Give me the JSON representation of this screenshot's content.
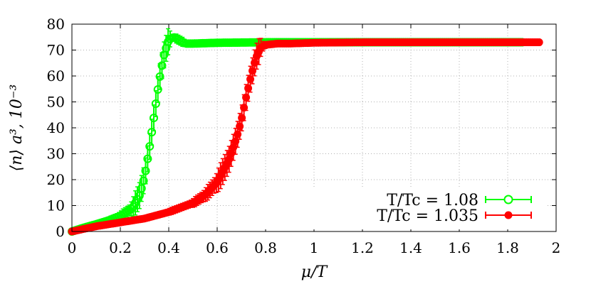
{
  "chart_data": {
    "type": "scatter",
    "xlabel": "μ/T",
    "ylabel": "⟨n⟩ a³, 10⁻³",
    "xlim": [
      0,
      2
    ],
    "ylim": [
      0,
      80
    ],
    "x_ticks": [
      "0",
      "0.2",
      "0.4",
      "0.6",
      "0.8",
      "1",
      "1.2",
      "1.4",
      "1.6",
      "1.8",
      "2"
    ],
    "y_ticks": [
      "0",
      "10",
      "20",
      "30",
      "40",
      "50",
      "60",
      "70",
      "80"
    ],
    "grid": true,
    "legend_position": "bottom-right",
    "series": [
      {
        "name": "T/Tc = 1.08",
        "color": "#00ff00",
        "marker": "open-circle",
        "error_bars": true,
        "x": [
          0,
          0.05,
          0.1,
          0.15,
          0.2,
          0.25,
          0.28,
          0.3,
          0.32,
          0.34,
          0.36,
          0.38,
          0.4,
          0.42,
          0.44,
          0.47,
          0.5,
          0.6,
          0.8,
          1.0,
          1.2,
          1.4,
          1.6,
          1.8,
          1.86
        ],
        "y": [
          0,
          1.5,
          2.8,
          4.2,
          6,
          9,
          14,
          21,
          32,
          45,
          58,
          68,
          74,
          75,
          74,
          72.5,
          72.5,
          72.8,
          73,
          73,
          73,
          73,
          73,
          73,
          73
        ]
      },
      {
        "name": "T/Tc = 1.035",
        "color": "#ff0000",
        "marker": "filled-circle",
        "error_bars": true,
        "x": [
          0,
          0.1,
          0.2,
          0.3,
          0.4,
          0.5,
          0.55,
          0.6,
          0.65,
          0.68,
          0.7,
          0.72,
          0.74,
          0.76,
          0.78,
          0.8,
          0.85,
          0.9,
          1.0,
          1.2,
          1.4,
          1.6,
          1.8,
          1.93
        ],
        "y": [
          0,
          2,
          3.5,
          5,
          7.5,
          11,
          14,
          19,
          28,
          36,
          43,
          52,
          60,
          67,
          71,
          72,
          72.5,
          72.5,
          72.8,
          73,
          73,
          73,
          73,
          73
        ]
      }
    ]
  }
}
